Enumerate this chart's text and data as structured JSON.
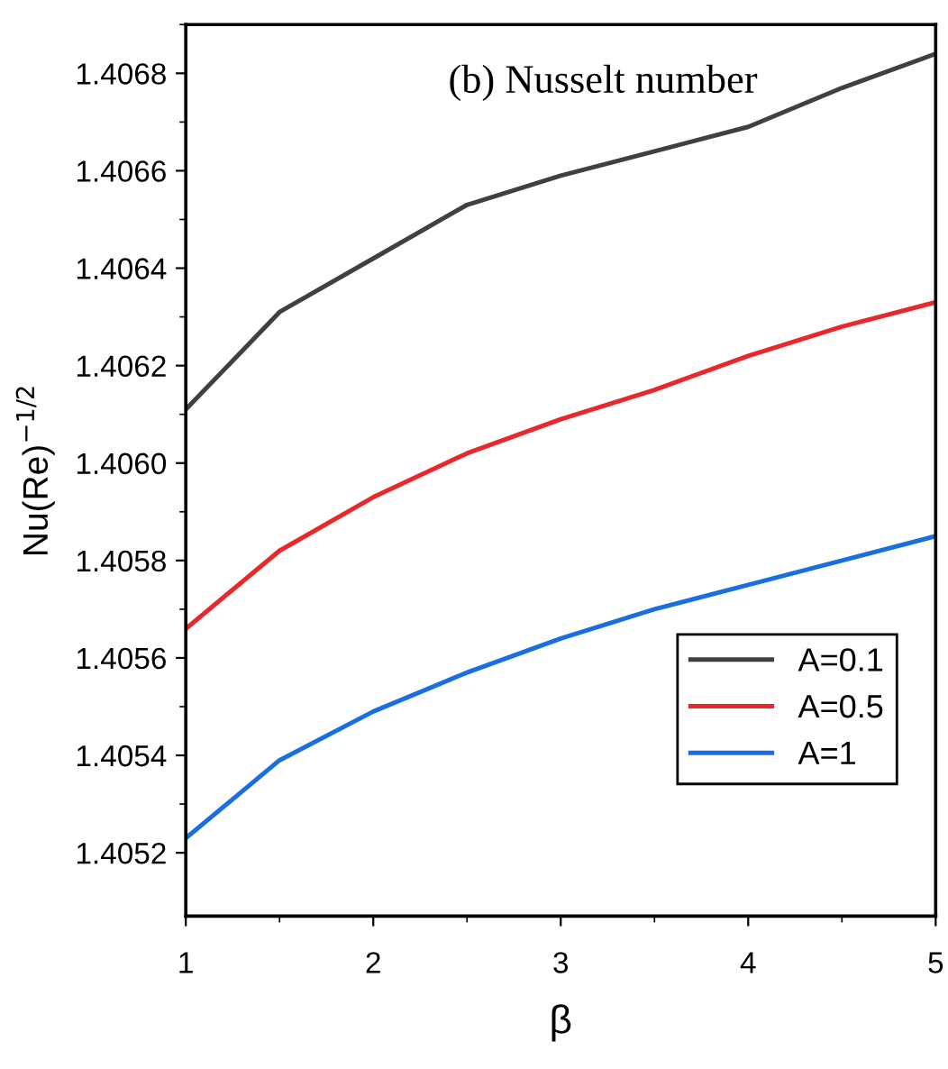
{
  "chart_data": {
    "type": "line",
    "title": "(b) Nusselt number",
    "xlabel": "β",
    "ylabel": "Nu(Re)$^{−1/2}$",
    "x": [
      1,
      1.5,
      2,
      2.5,
      3,
      3.5,
      4,
      4.5,
      5
    ],
    "series": [
      {
        "name": "A=0.1",
        "color": "#404040",
        "values": [
          1.40611,
          1.40631,
          1.40642,
          1.40653,
          1.40659,
          1.40664,
          1.40669,
          1.40677,
          1.40684
        ]
      },
      {
        "name": "A=0.5",
        "color": "#e8282b",
        "values": [
          1.40566,
          1.40582,
          1.40593,
          1.40602,
          1.40609,
          1.40615,
          1.40622,
          1.40628,
          1.40633
        ]
      },
      {
        "name": "A=1",
        "color": "#1a6fe0",
        "values": [
          1.40523,
          1.40539,
          1.40549,
          1.40557,
          1.40564,
          1.4057,
          1.40575,
          1.4058,
          1.40585
        ]
      }
    ],
    "xlim": [
      1,
      5
    ],
    "xticks": [
      1,
      2,
      3,
      4,
      5
    ],
    "ylim": [
      1.40507,
      1.4069
    ],
    "yticks": [
      {
        "value": 1.4052,
        "label": "1.4052"
      },
      {
        "value": 1.4054,
        "label": "1.4054"
      },
      {
        "value": 1.4056,
        "label": "1.4056"
      },
      {
        "value": 1.4058,
        "label": "1.4058"
      },
      {
        "value": 1.406,
        "label": "1.4060"
      },
      {
        "value": 1.4062,
        "label": "1.4062"
      },
      {
        "value": 1.4064,
        "label": "1.4064"
      },
      {
        "value": 1.4066,
        "label": "1.4066"
      },
      {
        "value": 1.4068,
        "label": "1.4068"
      }
    ],
    "legend": "bottom right",
    "grid": false,
    "line_style": "solid",
    "marker": "none"
  }
}
